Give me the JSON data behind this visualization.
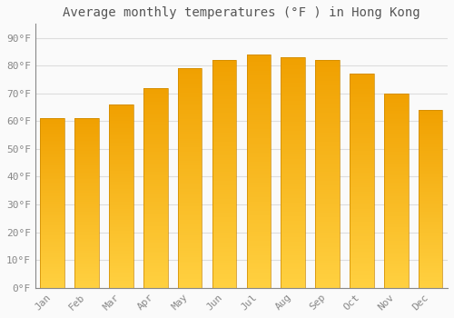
{
  "title": "Average monthly temperatures (°F ) in Hong Kong",
  "months": [
    "Jan",
    "Feb",
    "Mar",
    "Apr",
    "May",
    "Jun",
    "Jul",
    "Aug",
    "Sep",
    "Oct",
    "Nov",
    "Dec"
  ],
  "values": [
    61,
    61,
    66,
    72,
    79,
    82,
    84,
    83,
    82,
    77,
    70,
    64
  ],
  "bar_color_top": "#F0A000",
  "bar_color_bottom": "#FFD040",
  "background_color": "#FAFAFA",
  "grid_color": "#DDDDDD",
  "ylim": [
    0,
    95
  ],
  "yticks": [
    0,
    10,
    20,
    30,
    40,
    50,
    60,
    70,
    80,
    90
  ],
  "ytick_labels": [
    "0°F",
    "10°F",
    "20°F",
    "30°F",
    "40°F",
    "50°F",
    "60°F",
    "70°F",
    "80°F",
    "90°F"
  ],
  "title_fontsize": 10,
  "tick_fontsize": 8,
  "tick_font_color": "#888888",
  "title_font_color": "#555555",
  "bar_width": 0.7,
  "figsize": [
    5.0,
    3.5
  ],
  "dpi": 100
}
